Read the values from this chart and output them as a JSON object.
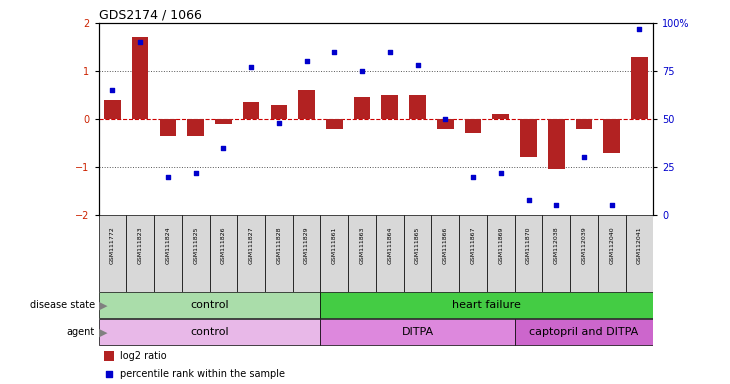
{
  "title": "GDS2174 / 1066",
  "samples": [
    "GSM111772",
    "GSM111823",
    "GSM111824",
    "GSM111825",
    "GSM111826",
    "GSM111827",
    "GSM111828",
    "GSM111829",
    "GSM111861",
    "GSM111863",
    "GSM111864",
    "GSM111865",
    "GSM111866",
    "GSM111867",
    "GSM111869",
    "GSM111870",
    "GSM112038",
    "GSM112039",
    "GSM112040",
    "GSM112041"
  ],
  "log2_ratio": [
    0.4,
    1.7,
    -0.35,
    -0.35,
    -0.1,
    0.35,
    0.3,
    0.6,
    -0.2,
    0.45,
    0.5,
    0.5,
    -0.2,
    -0.3,
    0.1,
    -0.8,
    -1.05,
    -0.2,
    -0.7,
    1.3
  ],
  "percentile": [
    65,
    90,
    20,
    22,
    35,
    77,
    48,
    80,
    85,
    75,
    85,
    78,
    50,
    20,
    22,
    8,
    5,
    30,
    5,
    97
  ],
  "ylim": [
    -2,
    2
  ],
  "yticks_left": [
    -2,
    -1,
    0,
    1,
    2
  ],
  "yticks_right": [
    0,
    25,
    50,
    75,
    100
  ],
  "bar_color": "#b22222",
  "scatter_color": "#0000cc",
  "zero_line_color": "#cc0000",
  "dotted_line_color": "#555555",
  "yaxis_label_color": "#cc2200",
  "disease_state_groups": [
    {
      "label": "control",
      "start": 0,
      "end": 8,
      "color": "#aaddaa"
    },
    {
      "label": "heart failure",
      "start": 8,
      "end": 20,
      "color": "#44cc44"
    }
  ],
  "agent_groups": [
    {
      "label": "control",
      "start": 0,
      "end": 8,
      "color": "#e8b8e8"
    },
    {
      "label": "DITPA",
      "start": 8,
      "end": 15,
      "color": "#dd88dd"
    },
    {
      "label": "captopril and DITPA",
      "start": 15,
      "end": 20,
      "color": "#cc66cc"
    }
  ],
  "legend_items": [
    {
      "label": "log2 ratio",
      "color": "#b22222"
    },
    {
      "label": "percentile rank within the sample",
      "color": "#0000cc"
    }
  ]
}
